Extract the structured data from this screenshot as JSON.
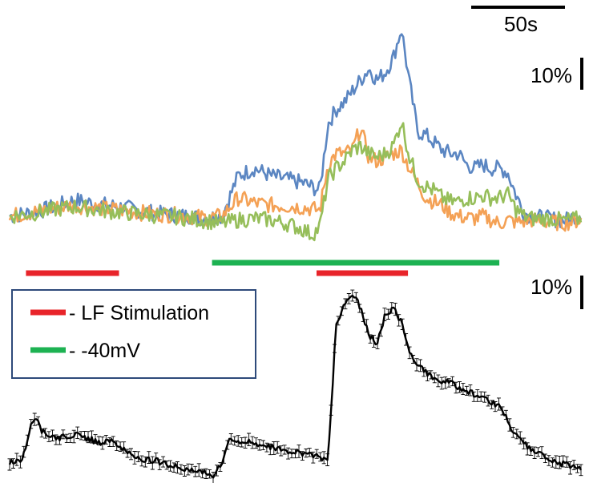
{
  "colors": {
    "blue": "#5B86C2",
    "orange": "#F4A155",
    "green": "#96BE5A",
    "stim_red": "#E8242A",
    "volt_green": "#1DB252",
    "black": "#000000",
    "legend_border": "#2E4A7A"
  },
  "scale": {
    "time_label": "50s",
    "top_pct_label": "10%",
    "bottom_pct_label": "10%"
  },
  "legend": {
    "items": [
      {
        "label": "- LF Stimulation",
        "color": "#E8242A"
      },
      {
        "label": "- -40mV",
        "color": "#1DB252"
      }
    ]
  },
  "chart_data": [
    {
      "type": "line",
      "title": "",
      "xlabel": "",
      "ylabel": "",
      "x_unit": "s",
      "y_unit": "%",
      "xlim": [
        0,
        350
      ],
      "ylim": [
        -5,
        30
      ],
      "series": [
        {
          "color": "#5B86C2",
          "x": [
            0,
            10,
            20,
            30,
            40,
            50,
            60,
            70,
            80,
            90,
            100,
            110,
            120,
            130,
            140,
            150,
            160,
            170,
            180,
            185,
            190,
            195,
            200,
            205,
            210,
            215,
            220,
            225,
            230,
            235,
            240,
            245,
            250,
            255,
            260,
            265,
            270,
            275,
            280,
            285,
            290,
            295,
            300,
            305,
            310,
            315,
            320,
            330,
            340,
            350
          ],
          "y": [
            0,
            0.4,
            0.8,
            1.5,
            2.2,
            1.8,
            1.5,
            1.2,
            0.8,
            0.4,
            0.2,
            0,
            -0.2,
            0,
            5.5,
            6.5,
            5.5,
            5.0,
            4.5,
            4.0,
            3.5,
            12.5,
            14.5,
            15.5,
            17.0,
            18.5,
            20.0,
            18.5,
            19.5,
            21.5,
            25.5,
            18.0,
            11.5,
            11.0,
            10.0,
            9.0,
            8.5,
            8.5,
            7.0,
            6.5,
            7.0,
            6.5,
            6.5,
            6.0,
            3.0,
            0.5,
            0,
            -0.3,
            -0.6,
            0.5
          ]
        },
        {
          "color": "#F4A155",
          "x": [
            0,
            10,
            20,
            30,
            40,
            50,
            60,
            70,
            80,
            90,
            100,
            110,
            120,
            130,
            140,
            150,
            160,
            170,
            180,
            185,
            190,
            195,
            200,
            205,
            210,
            215,
            220,
            225,
            230,
            235,
            240,
            245,
            250,
            255,
            260,
            265,
            270,
            275,
            280,
            285,
            290,
            295,
            300,
            305,
            310,
            315,
            320,
            330,
            340,
            350
          ],
          "y": [
            0,
            0.4,
            0.8,
            1.2,
            1.5,
            1.2,
            1.0,
            0.8,
            0.5,
            0.3,
            0.2,
            0,
            -0.2,
            0,
            2.5,
            1.8,
            1.5,
            1.4,
            1.2,
            1.0,
            0.8,
            7.0,
            8.5,
            8.5,
            9.0,
            12.0,
            8.0,
            7.5,
            8.0,
            8.5,
            9.0,
            6.5,
            4.5,
            2.5,
            2.0,
            1.5,
            0.5,
            0,
            -0.2,
            -0.3,
            0,
            -0.5,
            -1.0,
            -0.5,
            -0.8,
            -0.7,
            -0.5,
            -0.8,
            -0.9,
            -0.5
          ]
        },
        {
          "color": "#96BE5A",
          "x": [
            0,
            10,
            20,
            30,
            40,
            50,
            60,
            70,
            80,
            90,
            100,
            110,
            120,
            130,
            140,
            150,
            160,
            170,
            180,
            185,
            190,
            195,
            200,
            205,
            210,
            215,
            220,
            225,
            230,
            235,
            240,
            245,
            250,
            255,
            260,
            265,
            270,
            275,
            280,
            285,
            290,
            295,
            300,
            305,
            310,
            315,
            320,
            330,
            340,
            350
          ],
          "y": [
            0,
            0.3,
            0.6,
            1.0,
            1.3,
            1.0,
            0.7,
            0.5,
            0.3,
            0.1,
            0,
            -0.3,
            -0.6,
            -1.0,
            -0.5,
            -0.3,
            -0.5,
            -1.0,
            -1.8,
            -2.5,
            -1.5,
            5.0,
            6.5,
            7.5,
            9.0,
            9.5,
            8.5,
            8.0,
            8.5,
            9.5,
            13.0,
            8.0,
            5.0,
            4.0,
            3.5,
            2.5,
            2.0,
            2.0,
            2.5,
            2.5,
            2.8,
            2.5,
            2.5,
            3.0,
            1.0,
            0,
            -0.3,
            -0.3,
            -0.6,
            -0.3
          ]
        }
      ]
    },
    {
      "type": "line",
      "title": "",
      "xlabel": "",
      "ylabel": "",
      "x_unit": "s",
      "y_unit": "%",
      "error_bars": true,
      "xlim": [
        0,
        350
      ],
      "ylim": [
        -5,
        30
      ],
      "series": [
        {
          "color": "#000000",
          "x": [
            0,
            8,
            12,
            15,
            18,
            20,
            25,
            30,
            40,
            50,
            55,
            60,
            70,
            75,
            80,
            90,
            100,
            110,
            120,
            125,
            130,
            135,
            140,
            150,
            160,
            170,
            180,
            185,
            190,
            195,
            200,
            205,
            210,
            215,
            220,
            225,
            230,
            235,
            240,
            245,
            250,
            255,
            260,
            270,
            280,
            290,
            300,
            305,
            310,
            315,
            320,
            330,
            340,
            350
          ],
          "y": [
            0,
            0.5,
            4.0,
            6.0,
            5.5,
            4.0,
            3.5,
            3.2,
            3.6,
            3.0,
            2.6,
            3.0,
            1.8,
            0.8,
            0.5,
            0.2,
            -0.5,
            -1.0,
            -1.5,
            -1.8,
            0,
            3.0,
            2.8,
            2.5,
            2.0,
            1.5,
            1.2,
            1.0,
            0.6,
            0.3,
            18.0,
            21.0,
            22.5,
            20.5,
            17.0,
            15.5,
            19.5,
            20.5,
            18.5,
            14.5,
            13.0,
            12.0,
            11.0,
            10.5,
            9.5,
            8.5,
            7.5,
            5.5,
            3.5,
            2.5,
            1.5,
            0.5,
            -0.3,
            -0.8
          ]
        }
      ]
    }
  ],
  "bars": {
    "stim_1": {
      "label": "LF Stimulation",
      "start": 10,
      "end": 67
    },
    "voltage": {
      "label": "-40mV",
      "start": 124,
      "end": 300
    },
    "stim_2": {
      "label": "LF Stimulation",
      "start": 188,
      "end": 244
    }
  }
}
